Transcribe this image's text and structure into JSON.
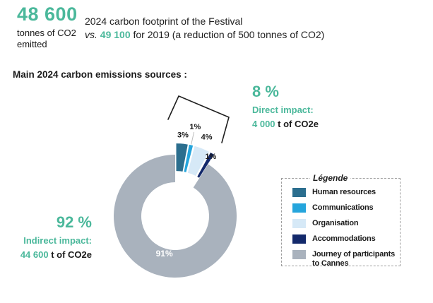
{
  "header": {
    "big_number": "48 600",
    "big_number_unit_line1": "tonnes of CO2",
    "big_number_unit_line2": "emitted",
    "description_line1": "2024 carbon footprint of the Festival",
    "vs_label": "vs.",
    "previous_value": "49 100",
    "description_line2_rest": "for 2019 (a reduction of 500 tonnes of CO2)"
  },
  "section_title": "Main 2024 carbon emissions sources :",
  "direct_impact": {
    "percent": "8 %",
    "label": "Direct impact:",
    "value": "4 000",
    "unit": "t of CO2e"
  },
  "indirect_impact": {
    "percent": "92 %",
    "label": "Indirect impact:",
    "value": "44 600",
    "unit": "t of CO2e"
  },
  "legend": {
    "title": "Légende",
    "items": [
      {
        "label": "Human resources",
        "color": "#2B6E8E"
      },
      {
        "label": "Communications",
        "color": "#25A5DC"
      },
      {
        "label": "Organisation",
        "color": "#D6E9F7"
      },
      {
        "label": "Accommodations",
        "color": "#13296B"
      },
      {
        "label": "Journey of participants to Cannes",
        "color": "#A9B2BD"
      }
    ]
  },
  "chart_data": {
    "type": "pie",
    "subtype": "exploded-donut",
    "title": "Main 2024 carbon emissions sources",
    "categories": [
      "Human resources",
      "Communications",
      "Organisation",
      "Accommodations",
      "Journey of participants to Cannes"
    ],
    "values": [
      3,
      1,
      4,
      1,
      91
    ],
    "slice_labels": [
      "3%",
      "1%",
      "4%",
      "1%",
      "91%"
    ],
    "colors": [
      "#2B6E8E",
      "#25A5DC",
      "#D6E9F7",
      "#13296B",
      "#A9B2BD"
    ],
    "start_angle_deg": 0,
    "exploded": [
      true,
      true,
      true,
      true,
      false
    ],
    "legend_position": "right"
  },
  "colors": {
    "accent_teal": "#4BB89B",
    "text": "#1A1A1A"
  }
}
